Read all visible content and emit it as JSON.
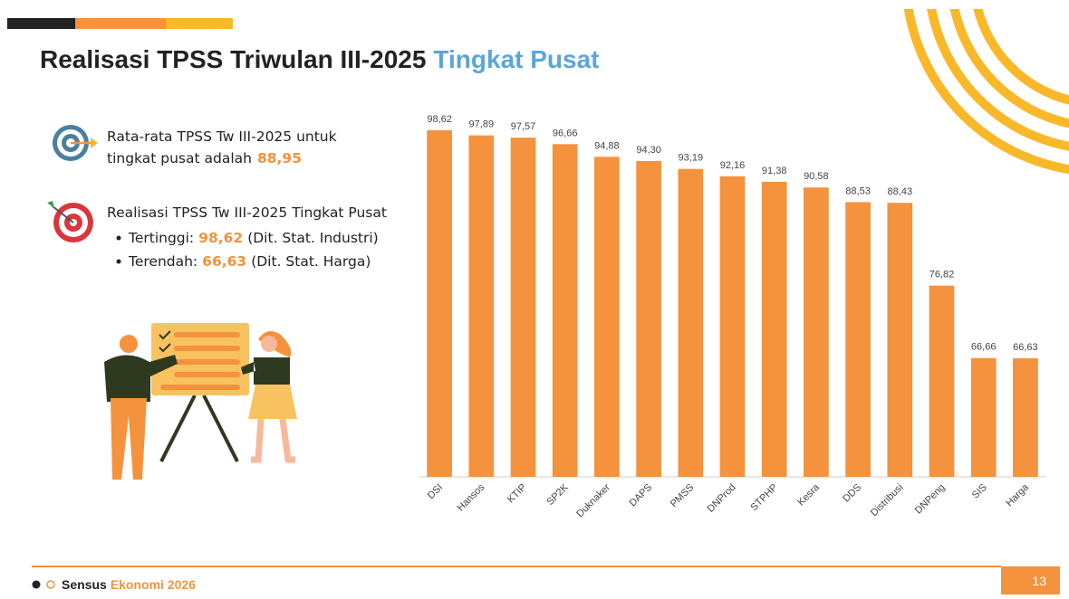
{
  "slide": {
    "title": "Realisasi TPSS Triwulan III-2025",
    "title_highlight": "Tingkat Pusat",
    "summary": {
      "line1": "Rata-rata TPSS Tw III-2025 untuk",
      "line2": "tingkat pusat adalah",
      "value": "88,95"
    },
    "detail": {
      "heading": "Realisasi TPSS Tw III-2025 Tingkat Pusat",
      "highest": {
        "label": "Tertinggi:",
        "value": "98,62",
        "note": "(Dit. Stat. Industri)"
      },
      "lowest": {
        "label": "Terendah:",
        "value": "66,63",
        "note": "(Dit. Stat. Harga)"
      }
    },
    "footer": {
      "brand": "Sensus",
      "brand_highlight": "Ekonomi 2026",
      "page": "13"
    }
  },
  "chart_data": {
    "type": "bar",
    "categories": [
      "DSI",
      "Hansos",
      "KTIP",
      "SP2K",
      "Duknaker",
      "DAPS",
      "PMSS",
      "DNProd",
      "STPHP",
      "Kesra",
      "DDS",
      "Distribusi",
      "DNPeng",
      "SIS",
      "Harga"
    ],
    "values": [
      98.62,
      97.89,
      97.57,
      96.66,
      94.88,
      94.3,
      93.19,
      92.16,
      91.38,
      90.58,
      88.53,
      88.43,
      76.82,
      66.66,
      66.63
    ],
    "value_labels": [
      "98,62",
      "97,89",
      "97,57",
      "96,66",
      "94,88",
      "94,30",
      "93,19",
      "92,16",
      "91,38",
      "90,58",
      "88,53",
      "88,43",
      "76,82",
      "66,66",
      "66,63"
    ],
    "color": "#f5923e",
    "ylim": [
      50,
      100
    ]
  }
}
